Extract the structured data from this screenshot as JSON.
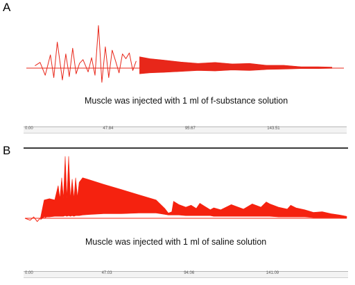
{
  "chart_data": [
    {
      "type": "line",
      "panel_label": "A",
      "annotation": "Muscle was injected with 1 ml of f-substance solution",
      "x_tick_labels": [
        "0.00",
        "47.84",
        "95.67",
        "143.51"
      ],
      "x_tick_values": [
        0,
        47.84,
        95.67,
        143.51
      ],
      "xlim": [
        0,
        185
      ],
      "color": "#e8271a",
      "baseline": 0,
      "ylim": [
        -1,
        1
      ],
      "spike_series": {
        "x": [
          5,
          8,
          11,
          14,
          16,
          18,
          21,
          23,
          25,
          27,
          29,
          31,
          33,
          36,
          38,
          40,
          42,
          44,
          46,
          48,
          50,
          52,
          54,
          56,
          58,
          60,
          62,
          64
        ],
        "y": [
          0.05,
          0.12,
          -0.15,
          0.28,
          -0.2,
          0.55,
          -0.25,
          0.3,
          -0.18,
          0.42,
          -0.12,
          0.1,
          0.18,
          -0.08,
          0.22,
          -0.15,
          0.9,
          -0.3,
          0.45,
          -0.2,
          0.38,
          0.15,
          -0.1,
          0.3,
          0.2,
          0.32,
          -0.05,
          0.15
        ]
      },
      "envelope_series": {
        "x": [
          66,
          72,
          80,
          90,
          100,
          110,
          120,
          130,
          140,
          150,
          160,
          170,
          178
        ],
        "y_top": [
          0.24,
          0.2,
          0.17,
          0.13,
          0.1,
          0.12,
          0.09,
          0.1,
          0.06,
          0.06,
          0.03,
          0.03,
          0.02
        ],
        "y_bottom": [
          -0.12,
          -0.1,
          -0.09,
          -0.07,
          -0.05,
          -0.06,
          -0.04,
          -0.05,
          -0.03,
          -0.02,
          -0.01,
          -0.01,
          -0.005
        ]
      }
    },
    {
      "type": "line",
      "panel_label": "B",
      "annotation": "Muscle was injected with 1 ml of saline solution",
      "x_tick_labels": [
        "0.00",
        "47.03",
        "94.06",
        "141.09"
      ],
      "x_tick_values": [
        0,
        47.03,
        94.06,
        141.09
      ],
      "xlim": [
        0,
        184
      ],
      "color": "#f5220f",
      "baseline": 0,
      "ylim": [
        -0.1,
        1
      ],
      "spike_series": {
        "x": [
          0,
          3,
          5,
          7,
          9,
          11,
          14
        ],
        "y": [
          0,
          -0.03,
          0.02,
          -0.05,
          0.01,
          0,
          0.05
        ]
      },
      "envelope_series": {
        "x": [
          9,
          11,
          14,
          17,
          19,
          20,
          21,
          22,
          23,
          24,
          25,
          26,
          27,
          28,
          29,
          30,
          31,
          33,
          38,
          45,
          55,
          65,
          75,
          80,
          82,
          84,
          85,
          88,
          92,
          95,
          98,
          100,
          103,
          106,
          108,
          112,
          118,
          122,
          125,
          130,
          135,
          138,
          140,
          145,
          150,
          152,
          155,
          160,
          165,
          170,
          175,
          180,
          184
        ],
        "y_top": [
          0.02,
          0.28,
          0.3,
          0.28,
          0.5,
          0.3,
          0.62,
          0.3,
          0.95,
          0.3,
          0.95,
          0.3,
          0.6,
          0.3,
          0.62,
          0.32,
          0.55,
          0.62,
          0.58,
          0.52,
          0.44,
          0.36,
          0.28,
          0.15,
          0.08,
          0.1,
          0.26,
          0.21,
          0.17,
          0.2,
          0.15,
          0.23,
          0.18,
          0.13,
          0.16,
          0.13,
          0.21,
          0.17,
          0.14,
          0.22,
          0.17,
          0.25,
          0.22,
          0.17,
          0.14,
          0.2,
          0.16,
          0.13,
          0.09,
          0.1,
          0.07,
          0.05,
          0.03
        ],
        "y_bottom": [
          -0.02,
          0.02,
          0.02,
          0.03,
          0.03,
          0.03,
          0.03,
          0.03,
          0.04,
          0.03,
          0.04,
          0.03,
          0.04,
          0.03,
          0.04,
          0.04,
          0.04,
          0.05,
          0.06,
          0.07,
          0.07,
          0.08,
          0.08,
          0.06,
          0.05,
          0.05,
          0.05,
          0.05,
          0.04,
          0.04,
          0.04,
          0.04,
          0.04,
          0.04,
          0.03,
          0.03,
          0.03,
          0.03,
          0.03,
          0.03,
          0.03,
          0.03,
          0.03,
          0.02,
          0.02,
          0.02,
          0.02,
          0.02,
          0.01,
          0.01,
          0.01,
          0.01,
          0
        ]
      }
    }
  ]
}
